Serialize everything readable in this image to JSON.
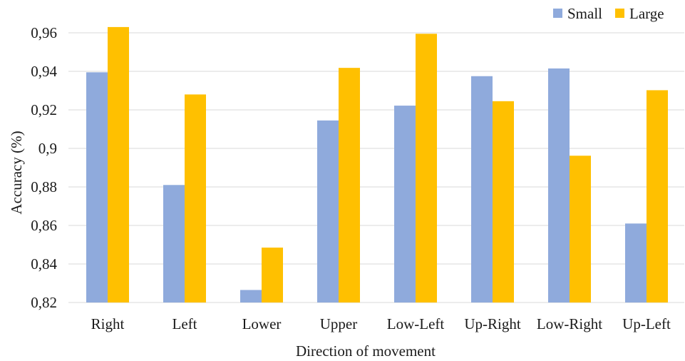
{
  "chart_data": {
    "type": "bar",
    "categories": [
      "Right",
      "Left",
      "Lower",
      "Upper",
      "Low-Left",
      "Up-Right",
      "Low-Right",
      "Up-Left"
    ],
    "series": [
      {
        "name": "Small",
        "values": [
          0.9395,
          0.881,
          0.8265,
          0.9145,
          0.9222,
          0.9375,
          0.9415,
          0.861
        ],
        "color": "#8faadc"
      },
      {
        "name": "Large",
        "values": [
          0.963,
          0.928,
          0.8485,
          0.9418,
          0.9595,
          0.9245,
          0.8962,
          0.9302
        ],
        "color": "#ffc000"
      }
    ],
    "xlabel": "Direction of movement",
    "ylabel": "Accuracy (%)",
    "ylim": [
      0.82,
      0.96
    ],
    "yticks": [
      0.82,
      0.84,
      0.86,
      0.88,
      0.9,
      0.92,
      0.94,
      0.96
    ],
    "ytick_labels": [
      "0,82",
      "0,84",
      "0,86",
      "0,88",
      "0,9",
      "0,92",
      "0,94",
      "0,96"
    ],
    "grid": true,
    "legend_position": "top-right",
    "gridline_color": "#d9d9d9"
  }
}
